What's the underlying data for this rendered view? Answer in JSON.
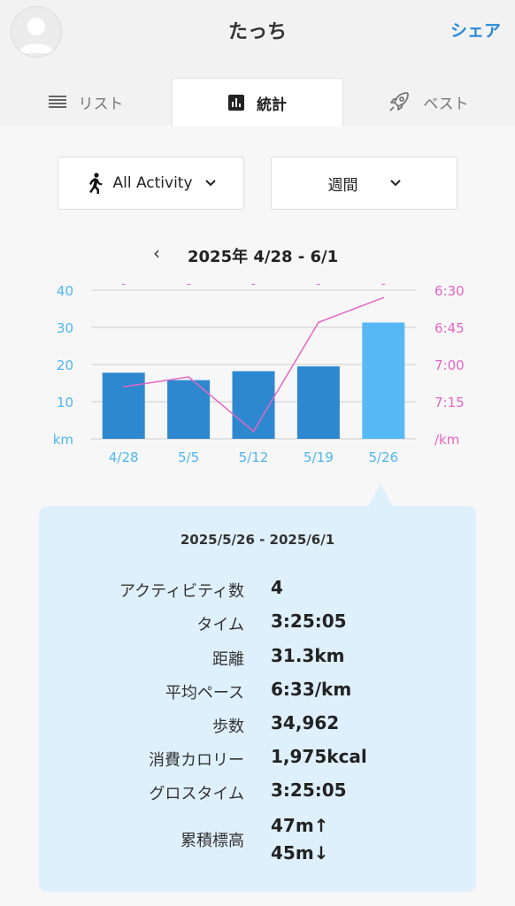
{
  "header": {
    "title": "たっち",
    "share_label": "シェア"
  },
  "tabs": [
    {
      "label": "リスト",
      "icon": "list-icon"
    },
    {
      "label": "統計",
      "icon": "bar-chart-icon",
      "active": true
    },
    {
      "label": "ベスト",
      "icon": "rocket-icon"
    }
  ],
  "filters": {
    "activity": "All Activity",
    "period": "週間"
  },
  "period_nav": {
    "prev": "‹",
    "label": "2025年 4/28 - 6/1"
  },
  "chart_data": {
    "type": "bar",
    "categories": [
      "4/28",
      "5/5",
      "5/12",
      "5/19",
      "5/26"
    ],
    "series": [
      {
        "values": [
          17.8,
          15.8,
          18.2,
          19.5,
          31.3
        ],
        "axis": "left"
      },
      {
        "type": "line",
        "axis": "right",
        "values": [
          "7:09",
          "7:05",
          "7:27",
          "6:43",
          "6:33"
        ]
      }
    ],
    "left_ticks": [
      "40",
      "30",
      "20",
      "10",
      "km"
    ],
    "left_range": [
      0,
      40
    ],
    "right_ticks": [
      "6:30",
      "6:45",
      "7:00",
      "7:15",
      "/km"
    ],
    "right_range_sec": [
      390,
      450
    ],
    "top_markers": [
      "-",
      "-",
      "-",
      "-",
      "-"
    ],
    "selected_index": 4,
    "colors": {
      "bar": "#2d88cf",
      "bar_selected": "#56b9f5",
      "line": "#e566c4",
      "left_axis": "#4db6f0",
      "right_axis": "#e566c4",
      "grid": "#cccccc"
    }
  },
  "detail": {
    "range": "2025/5/26 - 2025/6/1",
    "stats": [
      {
        "label": "アクティビティ数",
        "value": "4"
      },
      {
        "label": "タイム",
        "value": "3:25:05"
      },
      {
        "label": "距離",
        "value": "31.3km"
      },
      {
        "label": "平均ペース",
        "value": "6:33/km"
      },
      {
        "label": "歩数",
        "value": "34,962"
      },
      {
        "label": "消費カロリー",
        "value": "1,975kcal"
      },
      {
        "label": "グロスタイム",
        "value": "3:25:05"
      }
    ],
    "elevation": {
      "label": "累積標高",
      "up": "47m↑",
      "down": "45m↓"
    }
  }
}
